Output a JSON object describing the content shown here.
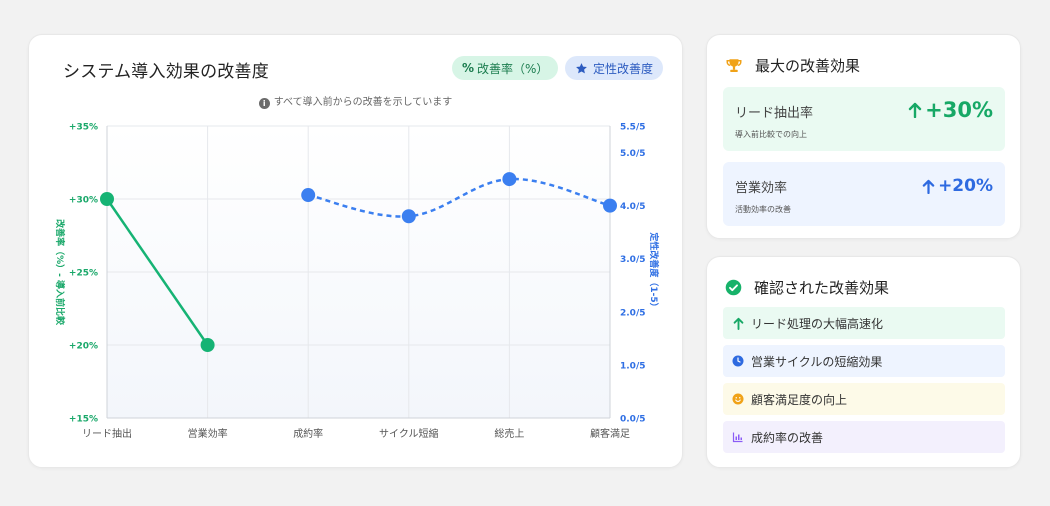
{
  "chart_card": {
    "title": "システム導入効果の改善度",
    "pill_rate_icon": "%",
    "pill_rate_label": "改善率（%）",
    "pill_qual_label": "定性改善度",
    "note": "すべて導入前からの改善を示しています"
  },
  "chart_data": {
    "type": "line",
    "categories": [
      "リード抽出",
      "営業効率",
      "成約率",
      "サイクル短縮",
      "総売上",
      "顧客満足"
    ],
    "y_left": {
      "label": "改善率（%）- 導入前比較",
      "ticks": [
        "+15%",
        "+20%",
        "+25%",
        "+30%",
        "+35%"
      ],
      "range": [
        15,
        35
      ],
      "color": "#1aa86a"
    },
    "y_right": {
      "label": "定性改善度（1-5）",
      "ticks": [
        "0.0/5",
        "1.0/5",
        "2.0/5",
        "3.0/5",
        "4.0/5",
        "5.0/5",
        "5.5/5"
      ],
      "tick_values": [
        0,
        1,
        2,
        3,
        4,
        5,
        5.5
      ],
      "range": [
        0,
        5.5
      ],
      "color": "#2f6fe4"
    },
    "series": [
      {
        "axis": "left",
        "style": "solid",
        "color": "#16b374",
        "x": [
          "リード抽出",
          "営業効率"
        ],
        "values": [
          30,
          20
        ]
      },
      {
        "axis": "right",
        "style": "dashed",
        "color": "#3b7ff0",
        "x": [
          "成約率",
          "サイクル短縮",
          "総売上",
          "顧客満足"
        ],
        "values": [
          4.2,
          3.8,
          4.5,
          4.0
        ]
      }
    ],
    "grid": true
  },
  "max_card": {
    "title": "最大の改善効果",
    "icon": "trophy-icon",
    "metrics": [
      {
        "label": "リード抽出率",
        "value": "+30%",
        "sub": "導入前比較での向上"
      },
      {
        "label": "営業効率",
        "value": "+20%",
        "sub": "活動効率の改善"
      }
    ]
  },
  "confirm_card": {
    "title": "確認された改善効果",
    "icon": "check-circle-icon",
    "items": [
      {
        "label": "リード処理の大幅高速化",
        "icon": "arrow-up-icon"
      },
      {
        "label": "営業サイクルの短縮効果",
        "icon": "clock-icon"
      },
      {
        "label": "顧客満足度の向上",
        "icon": "smile-icon"
      },
      {
        "label": "成約率の改善",
        "icon": "bar-chart-icon"
      }
    ]
  }
}
